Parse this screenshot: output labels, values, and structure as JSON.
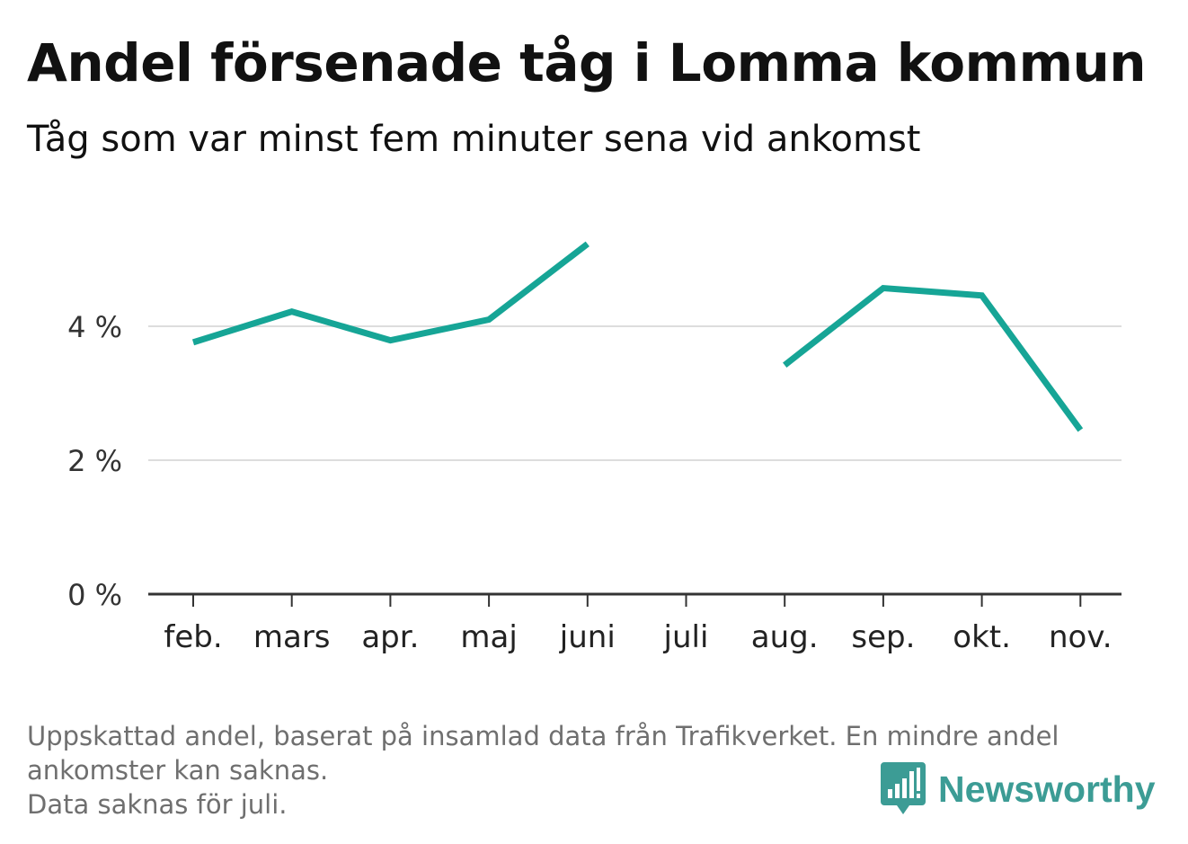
{
  "header": {
    "title": "Andel försenade tåg i Lomma kommun",
    "subtitle": "Tåg som var minst fem minuter sena vid ankomst"
  },
  "chart_data": {
    "type": "line",
    "categories": [
      "feb.",
      "mars",
      "apr.",
      "maj",
      "juni",
      "juli",
      "aug.",
      "sep.",
      "okt.",
      "nov."
    ],
    "series": [
      {
        "values": [
          3.76,
          4.22,
          3.79,
          4.1,
          5.23,
          null,
          3.42,
          4.57,
          4.46,
          2.45
        ],
        "color": "#16a596"
      }
    ],
    "y_ticks": [
      0,
      2,
      4
    ],
    "y_tick_labels": [
      "0 %",
      "2 %",
      "4 %"
    ],
    "ylim": [
      0,
      5.5
    ],
    "grid": true
  },
  "footnote": {
    "line1": "Uppskattad andel, baserat på insamlad data från Trafikverket. En mindre andel",
    "line2": "ankomster kan saknas.",
    "line3": "Data saknas för juli."
  },
  "brand": {
    "name": "Newsworthy",
    "icon": "bar-chart-speech-bubble-icon",
    "color": "#3c9c95"
  },
  "colors": {
    "line": "#16a596",
    "grid": "#dddddd",
    "axis": "#333333",
    "text": "#111111",
    "muted": "#6f6f6f"
  }
}
